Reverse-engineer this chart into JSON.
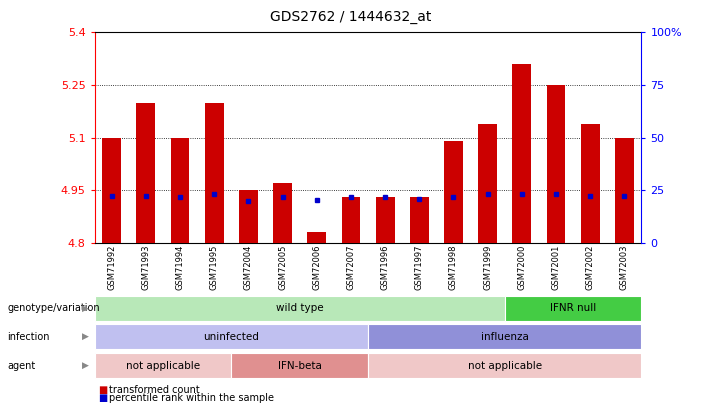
{
  "title": "GDS2762 / 1444632_at",
  "samples": [
    "GSM71992",
    "GSM71993",
    "GSM71994",
    "GSM71995",
    "GSM72004",
    "GSM72005",
    "GSM72006",
    "GSM72007",
    "GSM71996",
    "GSM71997",
    "GSM71998",
    "GSM71999",
    "GSM72000",
    "GSM72001",
    "GSM72002",
    "GSM72003"
  ],
  "red_values": [
    5.1,
    5.2,
    5.1,
    5.2,
    4.95,
    4.97,
    4.83,
    4.93,
    4.93,
    4.93,
    5.09,
    5.14,
    5.31,
    5.25,
    5.14,
    5.1
  ],
  "blue_values": [
    4.935,
    4.935,
    4.93,
    4.94,
    4.921,
    4.93,
    4.922,
    4.93,
    4.93,
    4.926,
    4.93,
    4.94,
    4.94,
    4.94,
    4.935,
    4.935
  ],
  "ymin": 4.8,
  "ymax": 5.4,
  "yticks": [
    4.8,
    4.95,
    5.1,
    5.25,
    5.4
  ],
  "ytick_labels": [
    "4.8",
    "4.95",
    "5.1",
    "5.25",
    "5.4"
  ],
  "right_yticks_pct": [
    0,
    25,
    50,
    75,
    100
  ],
  "right_ytick_labels": [
    "0",
    "25",
    "50",
    "75",
    "100%"
  ],
  "genotype_groups": [
    {
      "label": "wild type",
      "start": 0,
      "end": 12,
      "color": "#b8e8b8"
    },
    {
      "label": "IFNR null",
      "start": 12,
      "end": 16,
      "color": "#44cc44"
    }
  ],
  "infection_groups": [
    {
      "label": "uninfected",
      "start": 0,
      "end": 8,
      "color": "#c0c0f0"
    },
    {
      "label": "influenza",
      "start": 8,
      "end": 16,
      "color": "#9090d8"
    }
  ],
  "agent_groups": [
    {
      "label": "not applicable",
      "start": 0,
      "end": 4,
      "color": "#f0c8c8"
    },
    {
      "label": "IFN-beta",
      "start": 4,
      "end": 8,
      "color": "#e09090"
    },
    {
      "label": "not applicable",
      "start": 8,
      "end": 16,
      "color": "#f0c8c8"
    }
  ],
  "bar_color": "#cc0000",
  "blue_color": "#0000cc",
  "base_value": 4.8,
  "bar_width": 0.55,
  "row_labels": [
    "genotype/variation",
    "infection",
    "agent"
  ]
}
